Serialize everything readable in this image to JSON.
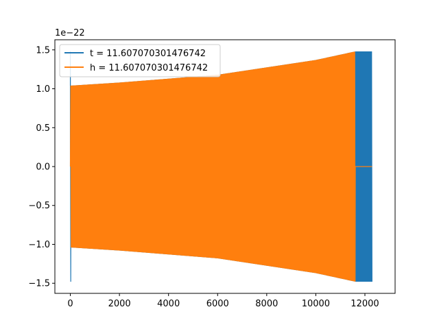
{
  "chart_data": {
    "type": "line",
    "title": "",
    "xlabel": "",
    "ylabel": "",
    "xlim": [
      -630,
      13230
    ],
    "ylim": [
      -1.63,
      1.63
    ],
    "y_offset_label": "1e−22",
    "x_ticks": [
      0,
      2000,
      4000,
      6000,
      8000,
      10000,
      12000
    ],
    "x_tick_labels": [
      "0",
      "2000",
      "4000",
      "6000",
      "8000",
      "10000",
      "12000"
    ],
    "y_ticks": [
      -1.5,
      -1.0,
      -0.5,
      0.0,
      0.5,
      1.0,
      1.5
    ],
    "y_tick_labels": [
      "−1.5",
      "−1.0",
      "−0.5",
      "0.0",
      "0.5",
      "1.0",
      "1.5"
    ],
    "grid": false,
    "legend_position": "top-left",
    "series": [
      {
        "name": "t = 11.607070301476742",
        "color": "#1f77b4",
        "x_start": 0,
        "x_end": 12290,
        "initial_spike": 1.48,
        "amplitude_start": 1.04,
        "amplitude_end": 1.48,
        "envelope": [
          [
            0,
            1.04
          ],
          [
            2000,
            1.08
          ],
          [
            6000,
            1.18
          ],
          [
            10000,
            1.37
          ],
          [
            11610,
            1.48
          ],
          [
            12290,
            1.48
          ]
        ]
      },
      {
        "name": "h = 11.607070301476742",
        "color": "#ff7f0e",
        "x_start": 0,
        "x_end": 11610,
        "tail_zero_until": 12290,
        "amplitude_start": 1.04,
        "amplitude_end": 1.48,
        "envelope": [
          [
            0,
            1.04
          ],
          [
            2000,
            1.08
          ],
          [
            6000,
            1.18
          ],
          [
            10000,
            1.37
          ],
          [
            11610,
            1.48
          ]
        ]
      }
    ]
  }
}
